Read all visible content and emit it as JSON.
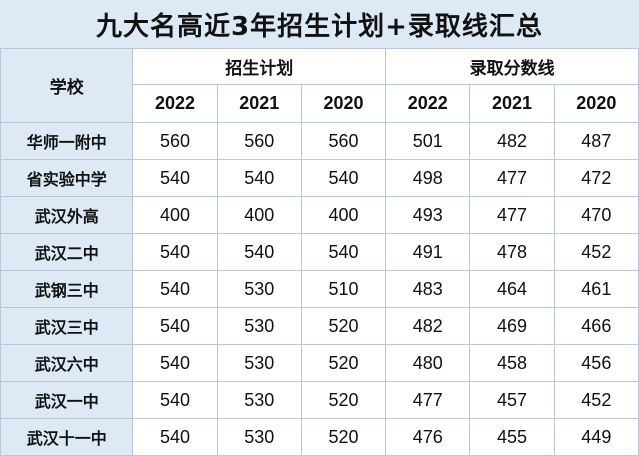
{
  "title": "九大名高近3年招生计划+录取线汇总",
  "header": {
    "school_label": "学校",
    "groups": [
      "招生计划",
      "录取分数线"
    ],
    "years": [
      "2022",
      "2021",
      "2020",
      "2022",
      "2021",
      "2020"
    ]
  },
  "rows": [
    {
      "school": "华师一附中",
      "values": [
        "560",
        "560",
        "560",
        "501",
        "482",
        "487"
      ]
    },
    {
      "school": "省实验中学",
      "values": [
        "540",
        "540",
        "540",
        "498",
        "477",
        "472"
      ]
    },
    {
      "school": "武汉外高",
      "values": [
        "400",
        "400",
        "400",
        "493",
        "477",
        "470"
      ]
    },
    {
      "school": "武汉二中",
      "values": [
        "540",
        "540",
        "540",
        "491",
        "478",
        "452"
      ]
    },
    {
      "school": "武钢三中",
      "values": [
        "540",
        "530",
        "510",
        "483",
        "464",
        "461"
      ]
    },
    {
      "school": "武汉三中",
      "values": [
        "540",
        "530",
        "520",
        "482",
        "469",
        "466"
      ]
    },
    {
      "school": "武汉六中",
      "values": [
        "540",
        "530",
        "520",
        "480",
        "458",
        "456"
      ]
    },
    {
      "school": "武汉一中",
      "values": [
        "540",
        "530",
        "520",
        "477",
        "457",
        "452"
      ]
    },
    {
      "school": "武汉十一中",
      "values": [
        "540",
        "530",
        "520",
        "476",
        "455",
        "449"
      ]
    }
  ]
}
